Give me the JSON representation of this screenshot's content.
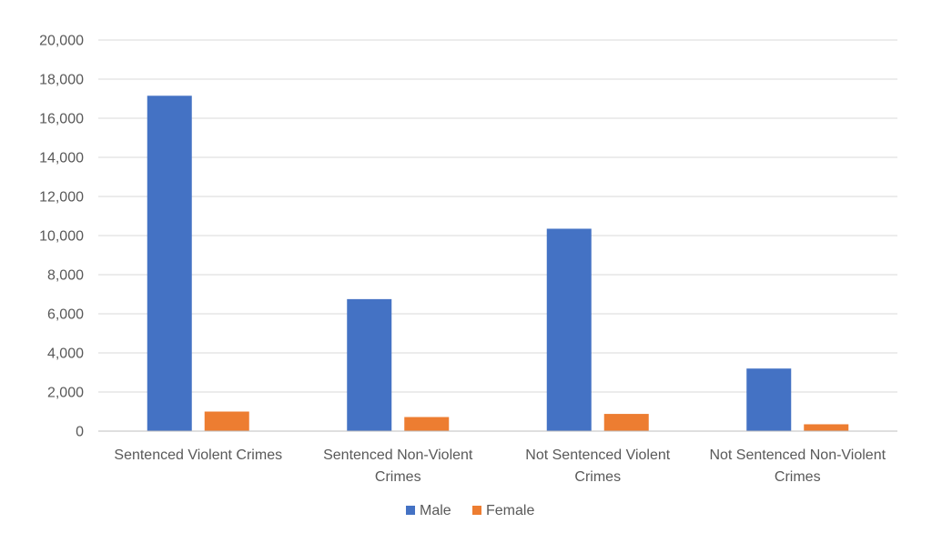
{
  "chart_data": {
    "type": "bar",
    "categories": [
      "Sentenced Violent Crimes",
      "Sentenced Non-Violent Crimes",
      "Not Sentenced Violent Crimes",
      "Not Sentenced Non-Violent Crimes"
    ],
    "category_label_lines": [
      [
        "Sentenced Violent Crimes"
      ],
      [
        "Sentenced Non-Violent",
        "Crimes"
      ],
      [
        "Not Sentenced Violent",
        "Crimes"
      ],
      [
        "Not Sentenced Non-Violent",
        "Crimes"
      ]
    ],
    "series": [
      {
        "name": "Male",
        "color": "#4472C4",
        "values": [
          17150,
          6750,
          10350,
          3200
        ]
      },
      {
        "name": "Female",
        "color": "#ED7D31",
        "values": [
          1000,
          720,
          880,
          350
        ]
      }
    ],
    "ylim": [
      0,
      20000
    ],
    "yticks": [
      0,
      2000,
      4000,
      6000,
      8000,
      10000,
      12000,
      14000,
      16000,
      18000,
      20000
    ],
    "ytick_labels": [
      "0",
      "2,000",
      "4,000",
      "6,000",
      "8,000",
      "10,000",
      "12,000",
      "14,000",
      "16,000",
      "18,000",
      "20,000"
    ],
    "title": "",
    "xlabel": "",
    "ylabel": "",
    "grid": true,
    "legend_position": "bottom",
    "gridline_color": "#D9D9D9",
    "axis_color": "#BFBFBF"
  }
}
